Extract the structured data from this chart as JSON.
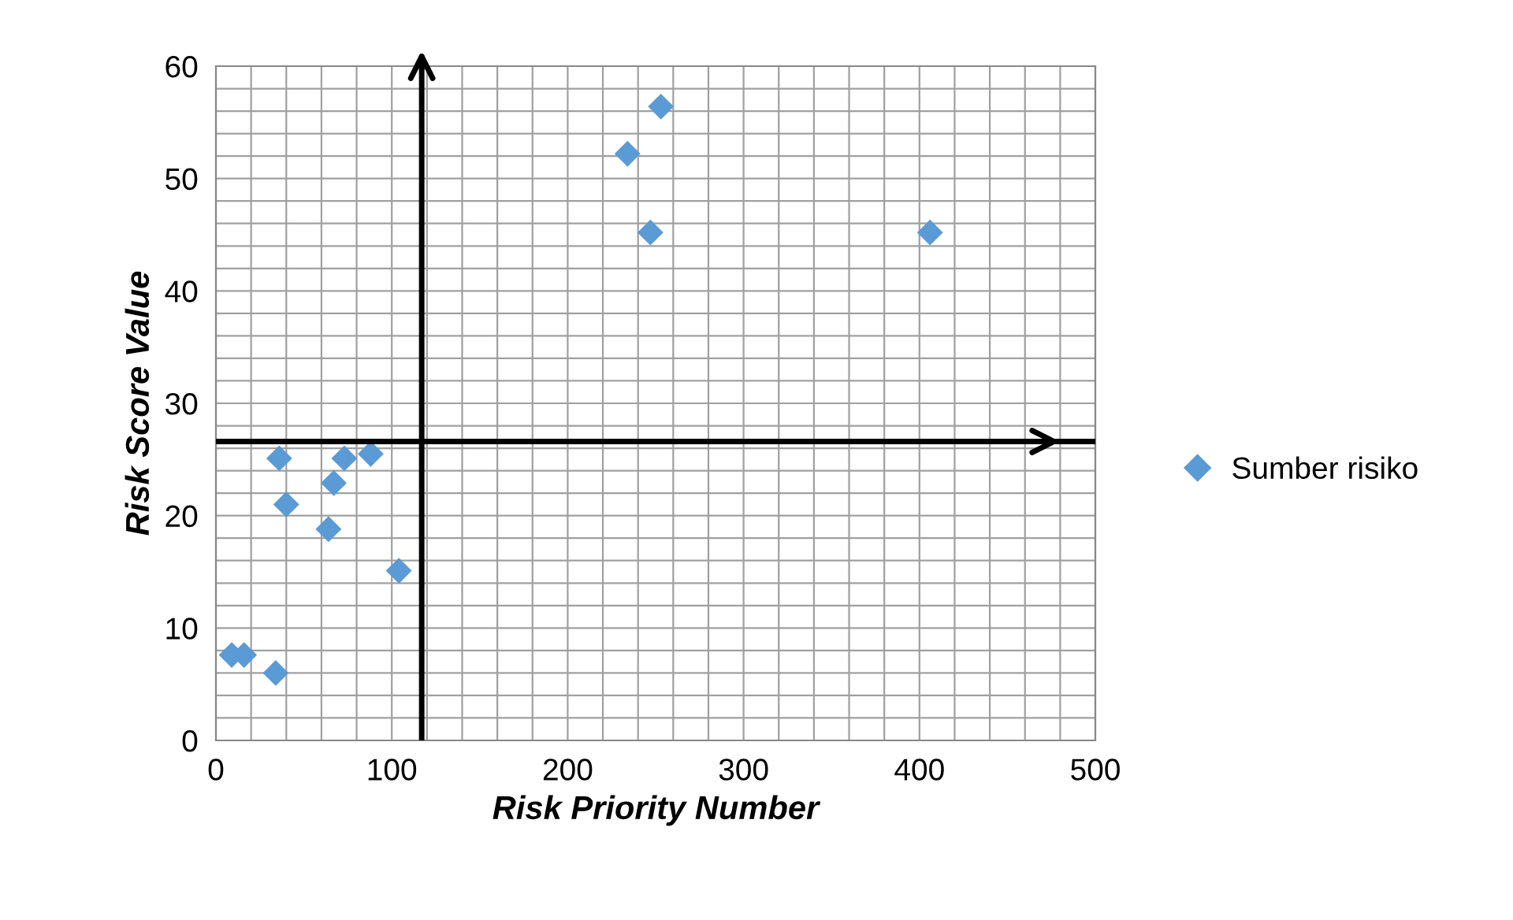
{
  "chart_data": {
    "type": "scatter",
    "xlabel": "Risk Priority Number",
    "ylabel": "Risk Score Value",
    "series": [
      {
        "name": "Sumber risiko",
        "color": "#5b9bd5",
        "x": [
          9,
          16,
          34,
          36,
          40,
          64,
          67,
          73,
          88,
          104,
          234,
          247,
          253,
          406
        ],
        "values": [
          7.6,
          7.6,
          6.0,
          25.1,
          21.0,
          18.8,
          22.9,
          25.1,
          25.5,
          15.1,
          52.2,
          45.2,
          56.4,
          45.2
        ]
      }
    ],
    "xlim": [
      0,
      500
    ],
    "ylim": [
      0,
      60
    ],
    "xticks": [
      0,
      100,
      200,
      300,
      400,
      500
    ],
    "yticks": [
      0,
      10,
      20,
      30,
      40,
      50,
      60
    ],
    "ref_lines": [
      {
        "axis": "x",
        "value": 117,
        "color": "#000000"
      },
      {
        "axis": "y",
        "value": 26.6,
        "color": "#000000"
      }
    ],
    "grid": true,
    "legend": "right",
    "marker": "diamond"
  }
}
